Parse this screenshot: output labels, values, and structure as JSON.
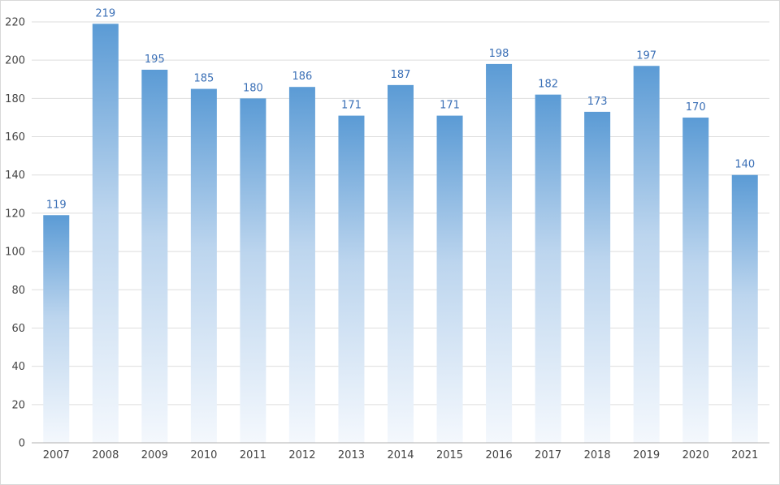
{
  "chart_data": {
    "type": "bar",
    "categories": [
      "2007",
      "2008",
      "2009",
      "2010",
      "2011",
      "2012",
      "2013",
      "2014",
      "2015",
      "2016",
      "2017",
      "2018",
      "2019",
      "2020",
      "2021"
    ],
    "values": [
      119,
      219,
      195,
      185,
      180,
      186,
      171,
      187,
      171,
      198,
      182,
      173,
      197,
      170,
      140
    ],
    "ylim": [
      0,
      220
    ],
    "y_ticks": [
      0,
      20,
      40,
      60,
      80,
      100,
      120,
      140,
      160,
      180,
      200,
      220
    ],
    "grid": true,
    "data_labels": true,
    "colors": {
      "bar_top": "#5b9bd5",
      "bar_mid": "#bcd5ee",
      "bar_bottom": "#f4f8fd",
      "data_label": "#3a6fb6",
      "grid": "#dedede"
    }
  }
}
